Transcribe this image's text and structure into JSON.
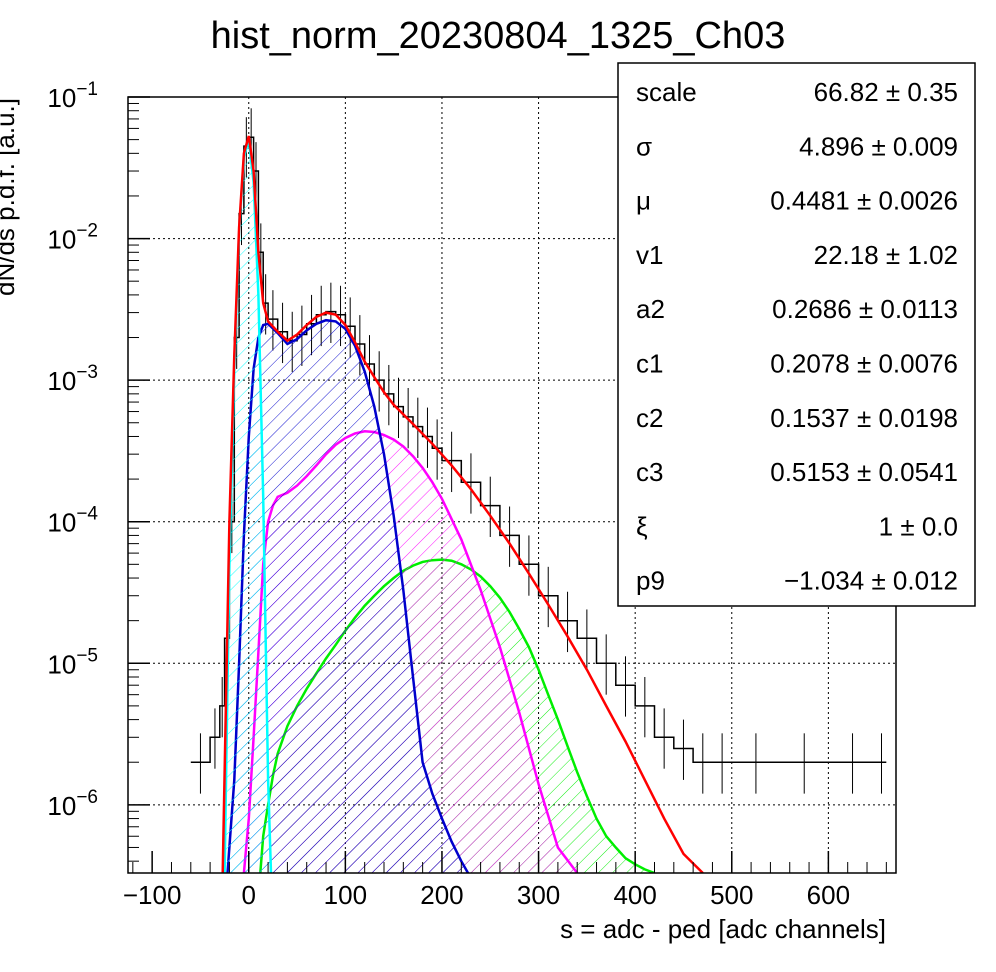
{
  "chart_data": {
    "type": "line",
    "title": "hist_norm_20230804_1325_Ch03",
    "xlabel": "s = adc - ped [adc channels]",
    "ylabel": "dN/ds p.d.f. [a.u.]",
    "xlim": [
      -125,
      670
    ],
    "ylim": [
      3.3e-07,
      0.1
    ],
    "y_scale": "log",
    "grid": true,
    "x_ticks": [
      {
        "value": -100,
        "label": "−100"
      },
      {
        "value": 0,
        "label": "0"
      },
      {
        "value": 100,
        "label": "100"
      },
      {
        "value": 200,
        "label": "200"
      },
      {
        "value": 300,
        "label": "300"
      },
      {
        "value": 400,
        "label": "400"
      },
      {
        "value": 500,
        "label": "500"
      },
      {
        "value": 600,
        "label": "600"
      }
    ],
    "y_ticks": [
      {
        "value": 1e-06,
        "base": "10",
        "exp": "−6"
      },
      {
        "value": 1e-05,
        "base": "10",
        "exp": "−5"
      },
      {
        "value": 0.0001,
        "base": "10",
        "exp": "−4"
      },
      {
        "value": 0.001,
        "base": "10",
        "exp": "−3"
      },
      {
        "value": 0.01,
        "base": "10",
        "exp": "−2"
      },
      {
        "value": 0.1,
        "base": "10",
        "exp": "−1"
      }
    ],
    "series": [
      {
        "color": "#000000",
        "style": "histogram",
        "x": [
          -60,
          -40,
          -30,
          -25,
          -20,
          -15,
          -10,
          -5,
          0,
          5,
          10,
          15,
          20,
          30,
          40,
          50,
          60,
          70,
          80,
          90,
          100,
          110,
          120,
          130,
          140,
          150,
          160,
          170,
          180,
          190,
          200,
          220,
          240,
          260,
          280,
          300,
          320,
          340,
          360,
          380,
          400,
          420,
          440,
          460,
          480,
          500,
          550,
          600,
          650
        ],
        "y": [
          2e-06,
          3e-06,
          5e-06,
          1.5e-05,
          0.0001,
          0.002,
          0.015,
          0.045,
          0.052,
          0.03,
          0.008,
          0.0035,
          0.0027,
          0.0022,
          0.0019,
          0.0021,
          0.0025,
          0.0029,
          0.00305,
          0.0029,
          0.0024,
          0.0018,
          0.0013,
          0.001,
          0.0008,
          0.00065,
          0.00055,
          0.00047,
          0.0004,
          0.00033,
          0.00027,
          0.00019,
          0.00013,
          8e-05,
          5e-05,
          3e-05,
          2e-05,
          1.5e-05,
          1e-05,
          7e-06,
          5e-06,
          3e-06,
          2.5e-06,
          2e-06,
          2e-06,
          2e-06,
          2e-06,
          2e-06,
          2e-06
        ]
      },
      {
        "color": "#ff0000",
        "style": "line",
        "x": [
          -27,
          -20,
          -15,
          -10,
          -5,
          0,
          5,
          10,
          15,
          20,
          30,
          40,
          50,
          60,
          70,
          80,
          90,
          100,
          110,
          120,
          130,
          140,
          150,
          170,
          190,
          210,
          230,
          250,
          270,
          290,
          310,
          330,
          350,
          370,
          390,
          410,
          430,
          450,
          470
        ],
        "y": [
          3.3e-07,
          0.0001,
          0.0015,
          0.012,
          0.04,
          0.053,
          0.03,
          0.008,
          0.0035,
          0.0026,
          0.0022,
          0.0019,
          0.0021,
          0.00245,
          0.0028,
          0.003,
          0.0029,
          0.00245,
          0.00185,
          0.00135,
          0.00105,
          0.00082,
          0.00067,
          0.00049,
          0.000355,
          0.00025,
          0.00017,
          0.00011,
          7e-05,
          4.3e-05,
          2.6e-05,
          1.55e-05,
          9e-06,
          5e-06,
          2.8e-06,
          1.5e-06,
          8e-07,
          4.5e-07,
          3.3e-07
        ]
      },
      {
        "color": "#00ffff",
        "style": "filled",
        "x": [
          -25,
          -20,
          -15,
          -10,
          -5,
          0,
          5,
          10,
          15,
          20,
          23
        ],
        "y": [
          3.3e-07,
          5e-05,
          0.0012,
          0.011,
          0.038,
          0.05,
          0.025,
          0.004,
          0.00015,
          1.5e-06,
          3.3e-07
        ]
      },
      {
        "color": "#0000cc",
        "style": "filled",
        "x": [
          -22,
          -15,
          -10,
          -5,
          0,
          5,
          10,
          15,
          20,
          30,
          40,
          50,
          60,
          70,
          80,
          90,
          100,
          110,
          120,
          130,
          140,
          150,
          160,
          170,
          180,
          190,
          200,
          210,
          220,
          227
        ],
        "y": [
          3.3e-07,
          1.5e-06,
          1e-05,
          8e-05,
          0.0004,
          0.0012,
          0.002,
          0.00245,
          0.0025,
          0.00215,
          0.0018,
          0.00195,
          0.00225,
          0.0025,
          0.00265,
          0.0026,
          0.0023,
          0.00175,
          0.00115,
          0.00065,
          0.0003,
          0.00011,
          3.3e-05,
          8e-06,
          2e-06,
          1.2e-06,
          8e-07,
          5.5e-07,
          4e-07,
          3.3e-07
        ]
      },
      {
        "color": "#ff00ff",
        "style": "filled",
        "x": [
          -5,
          0,
          5,
          10,
          15,
          20,
          25,
          30,
          40,
          50,
          60,
          70,
          80,
          90,
          100,
          110,
          120,
          130,
          140,
          150,
          160,
          170,
          180,
          190,
          200,
          220,
          240,
          260,
          280,
          300,
          320,
          340
        ],
        "y": [
          3.3e-07,
          8e-07,
          3e-06,
          1.2e-05,
          5e-05,
          0.0001,
          0.00013,
          0.00015,
          0.00016,
          0.00018,
          0.00021,
          0.00025,
          0.0003,
          0.00035,
          0.00039,
          0.00042,
          0.000435,
          0.00043,
          0.00041,
          0.00038,
          0.00034,
          0.00029,
          0.00024,
          0.00019,
          0.000145,
          7.5e-05,
          3.3e-05,
          1.3e-05,
          4.5e-06,
          1.4e-06,
          5e-07,
          3.3e-07
        ]
      },
      {
        "color": "#00ee00",
        "style": "filled",
        "x": [
          12,
          15,
          20,
          25,
          30,
          40,
          50,
          60,
          70,
          80,
          90,
          100,
          110,
          120,
          130,
          140,
          150,
          160,
          170,
          180,
          190,
          200,
          210,
          220,
          230,
          240,
          250,
          260,
          270,
          280,
          290,
          300,
          310,
          320,
          330,
          340,
          350,
          360,
          370,
          380,
          390,
          400,
          410,
          420
        ],
        "y": [
          3.3e-07,
          6e-07,
          1e-06,
          1.6e-06,
          2.3e-06,
          3.6e-06,
          5e-06,
          6.6e-06,
          8.5e-06,
          1.08e-05,
          1.35e-05,
          1.7e-05,
          2.1e-05,
          2.55e-05,
          3e-05,
          3.5e-05,
          4e-05,
          4.5e-05,
          4.9e-05,
          5.2e-05,
          5.35e-05,
          5.4e-05,
          5.3e-05,
          5e-05,
          4.6e-05,
          4.1e-05,
          3.5e-05,
          2.9e-05,
          2.3e-05,
          1.75e-05,
          1.3e-05,
          9e-06,
          6e-06,
          4e-06,
          2.6e-06,
          1.7e-06,
          1.15e-06,
          8e-07,
          6e-07,
          5e-07,
          4.2e-07,
          3.8e-07,
          3.5e-07,
          3.3e-07
        ]
      }
    ]
  },
  "stats": [
    {
      "name": "scale",
      "value": "66.82 ± 0.35"
    },
    {
      "name": "σ",
      "value": "4.896 ± 0.009"
    },
    {
      "name": "μ",
      "value": "0.4481 ± 0.0026"
    },
    {
      "name": "v1",
      "value": "22.18 ± 1.02"
    },
    {
      "name": "a2",
      "value": "0.2686 ± 0.0113"
    },
    {
      "name": "c1",
      "value": "0.2078 ± 0.0076"
    },
    {
      "name": "c2",
      "value": "0.1537 ± 0.0198"
    },
    {
      "name": "c3",
      "value": "0.5153 ± 0.0541"
    },
    {
      "name": "ξ",
      "value": "1 ± 0.0"
    },
    {
      "name": "p9",
      "value": "−1.034 ± 0.012"
    }
  ]
}
